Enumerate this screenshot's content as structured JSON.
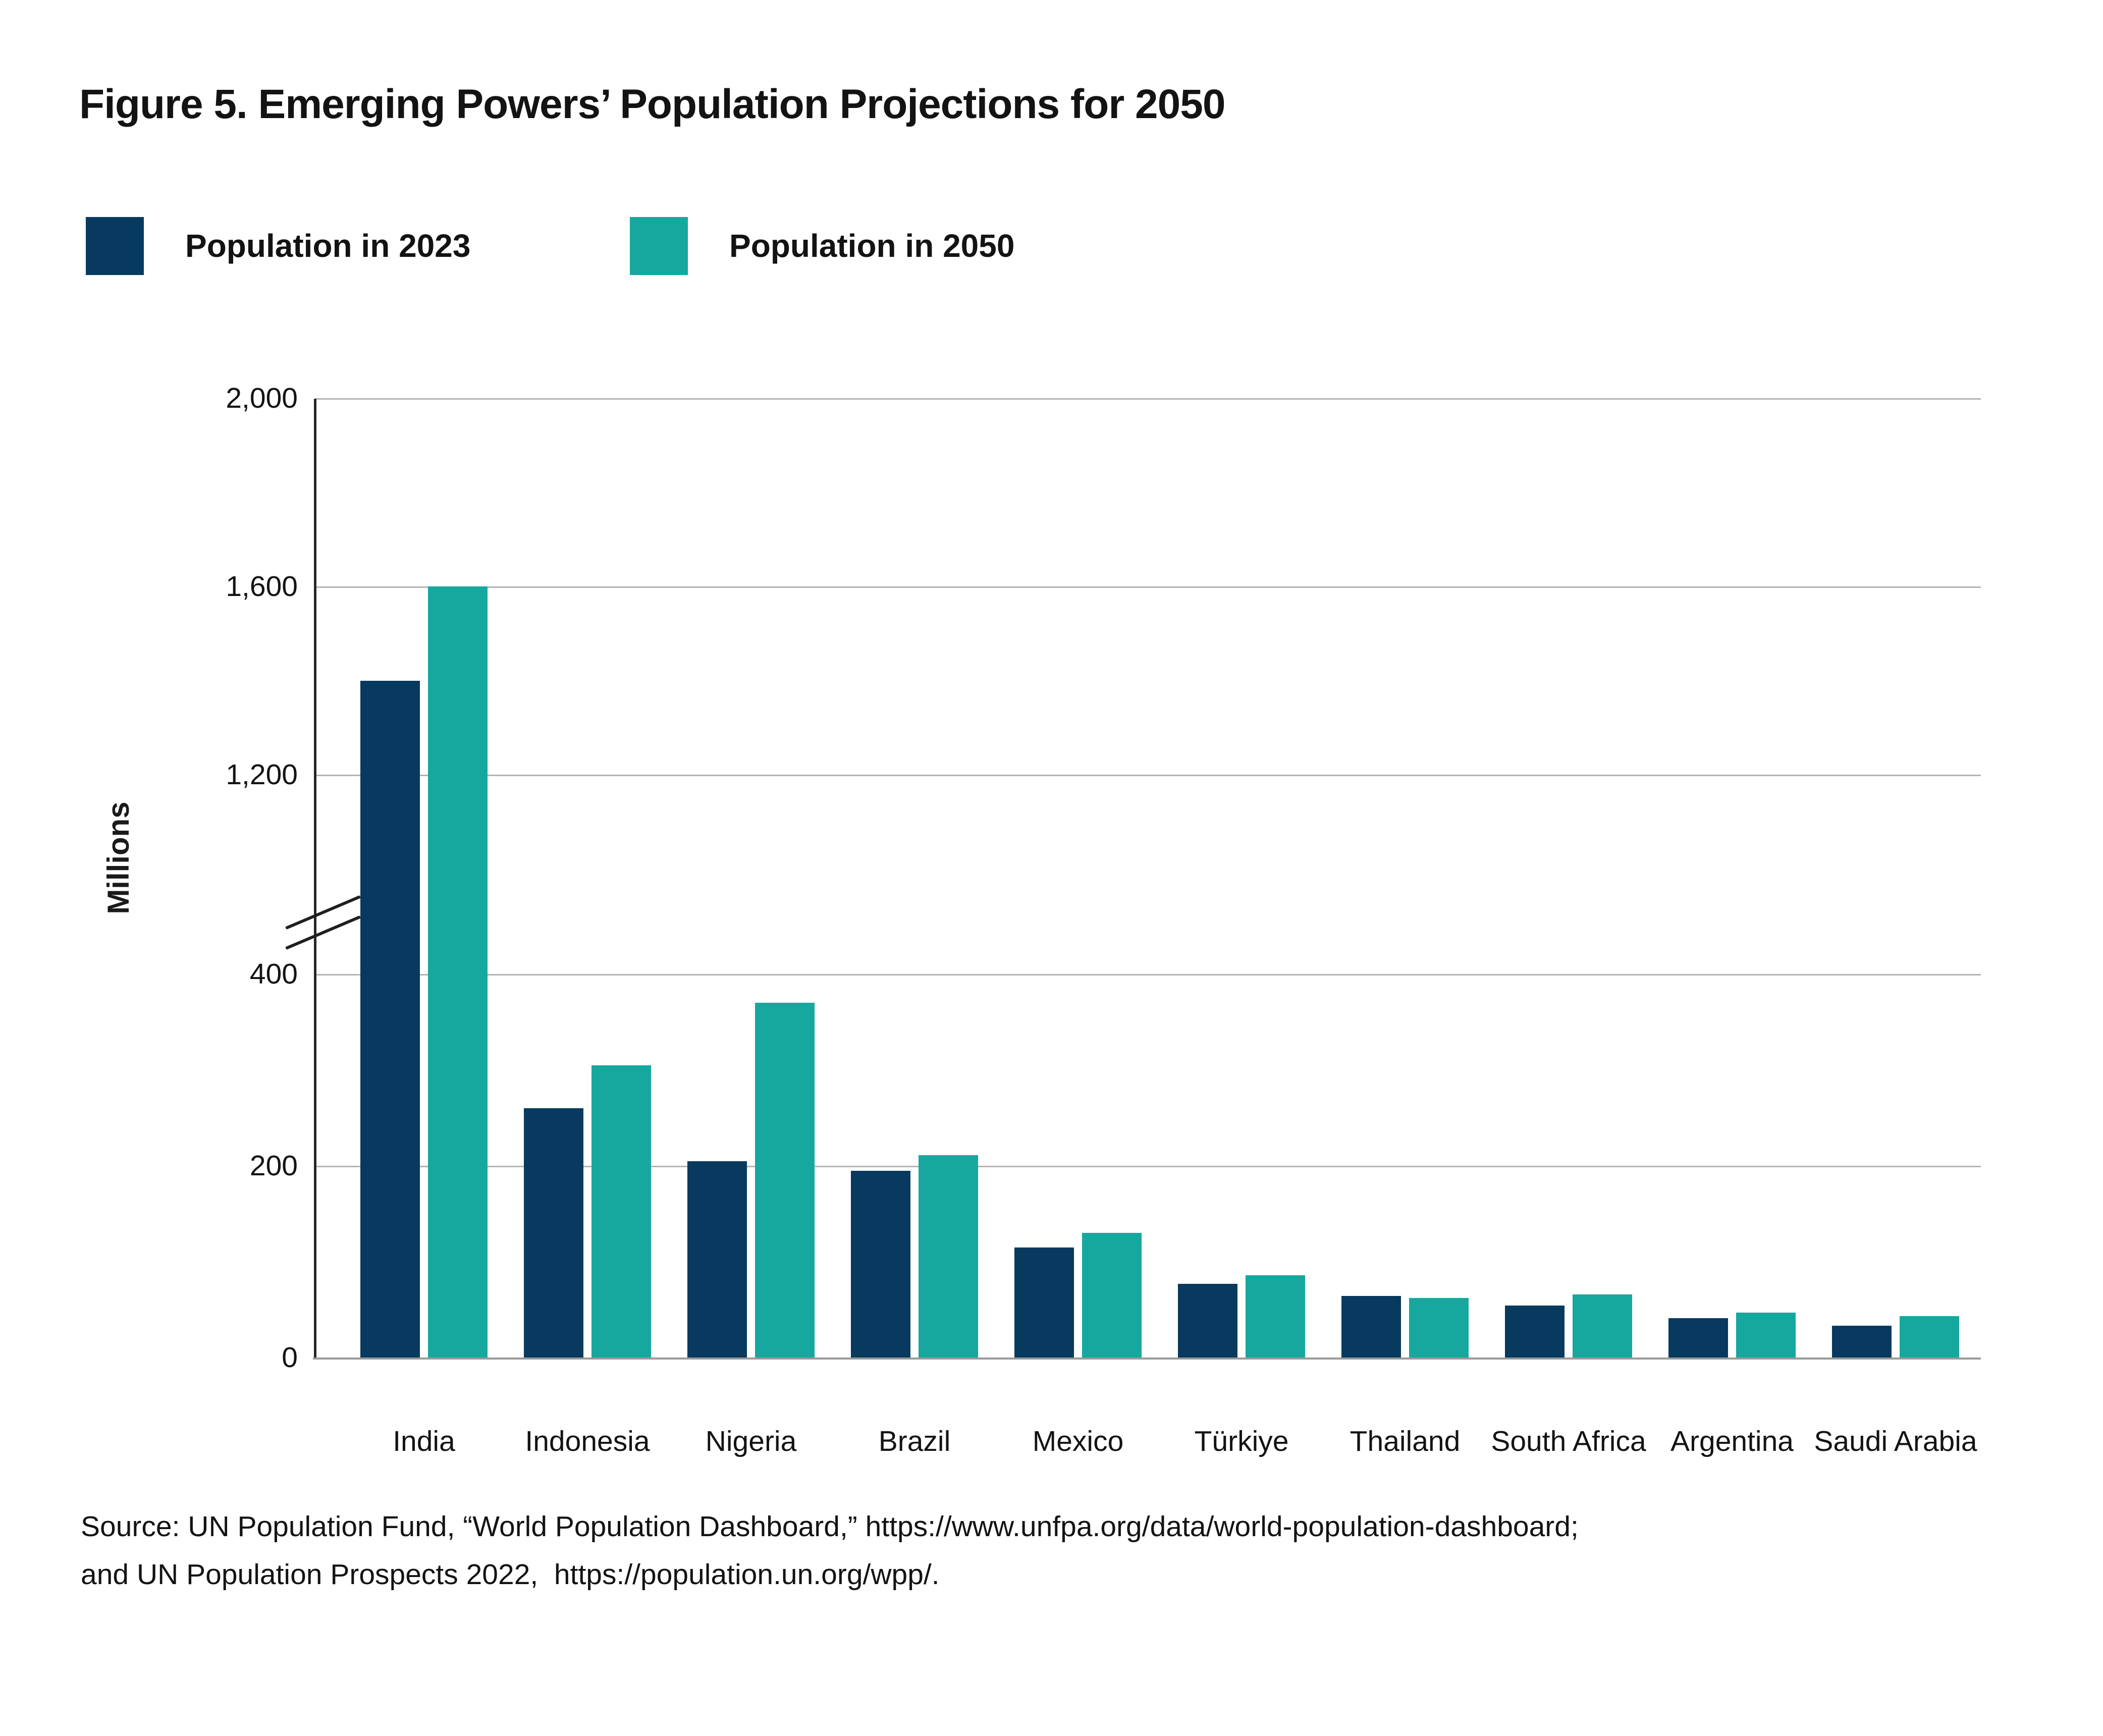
{
  "figure": {
    "title": "Figure 5. Emerging Powers’ Population Projections for 2050",
    "y_axis_title": "Millions",
    "source_line1": "Source: UN Population Fund, “World Population Dashboard,” https://www.unfpa.org/data/world-population-dashboard;",
    "source_line2": "and UN Population Prospects 2022,  https://population.un.org/wpp/.",
    "colors": {
      "bar_2023": "#073a5e",
      "bar_2050": "#16a89e",
      "gridline": "#b4b4b4",
      "axis_line": "#262626",
      "baseline": "#9a9a9a",
      "text": "#131313"
    }
  },
  "chart_data": {
    "type": "bar",
    "title": "Figure 5. Emerging Powers’ Population Projections for 2050",
    "ylabel": "Millions",
    "xlabel": "",
    "grid": true,
    "legend_position": "top-left",
    "categories": [
      "India",
      "Indonesia",
      "Nigeria",
      "Brazil",
      "Mexico",
      "Türkiye",
      "Thailand",
      "South Africa",
      "Argentina",
      "Saudi Arabia"
    ],
    "series": [
      {
        "name": "Population in 2023",
        "color": "#073a5e",
        "values": [
          1400,
          260,
          205,
          195,
          115,
          77,
          64,
          54,
          41,
          33
        ]
      },
      {
        "name": "Population in 2050",
        "color": "#16a89e",
        "values": [
          1600,
          305,
          370,
          211,
          130,
          86,
          62,
          66,
          47,
          43
        ]
      }
    ],
    "y_axis": {
      "unit": "millions",
      "broken_axis": true,
      "break_between": [
        400,
        1200
      ],
      "segments": [
        [
          0,
          400
        ],
        [
          1200,
          2000
        ]
      ],
      "tick_values": [
        0,
        200,
        400,
        1200,
        1600,
        2000
      ],
      "tick_labels": [
        "0",
        "200",
        "400",
        "1,200",
        "1,600",
        "2,000"
      ]
    }
  }
}
